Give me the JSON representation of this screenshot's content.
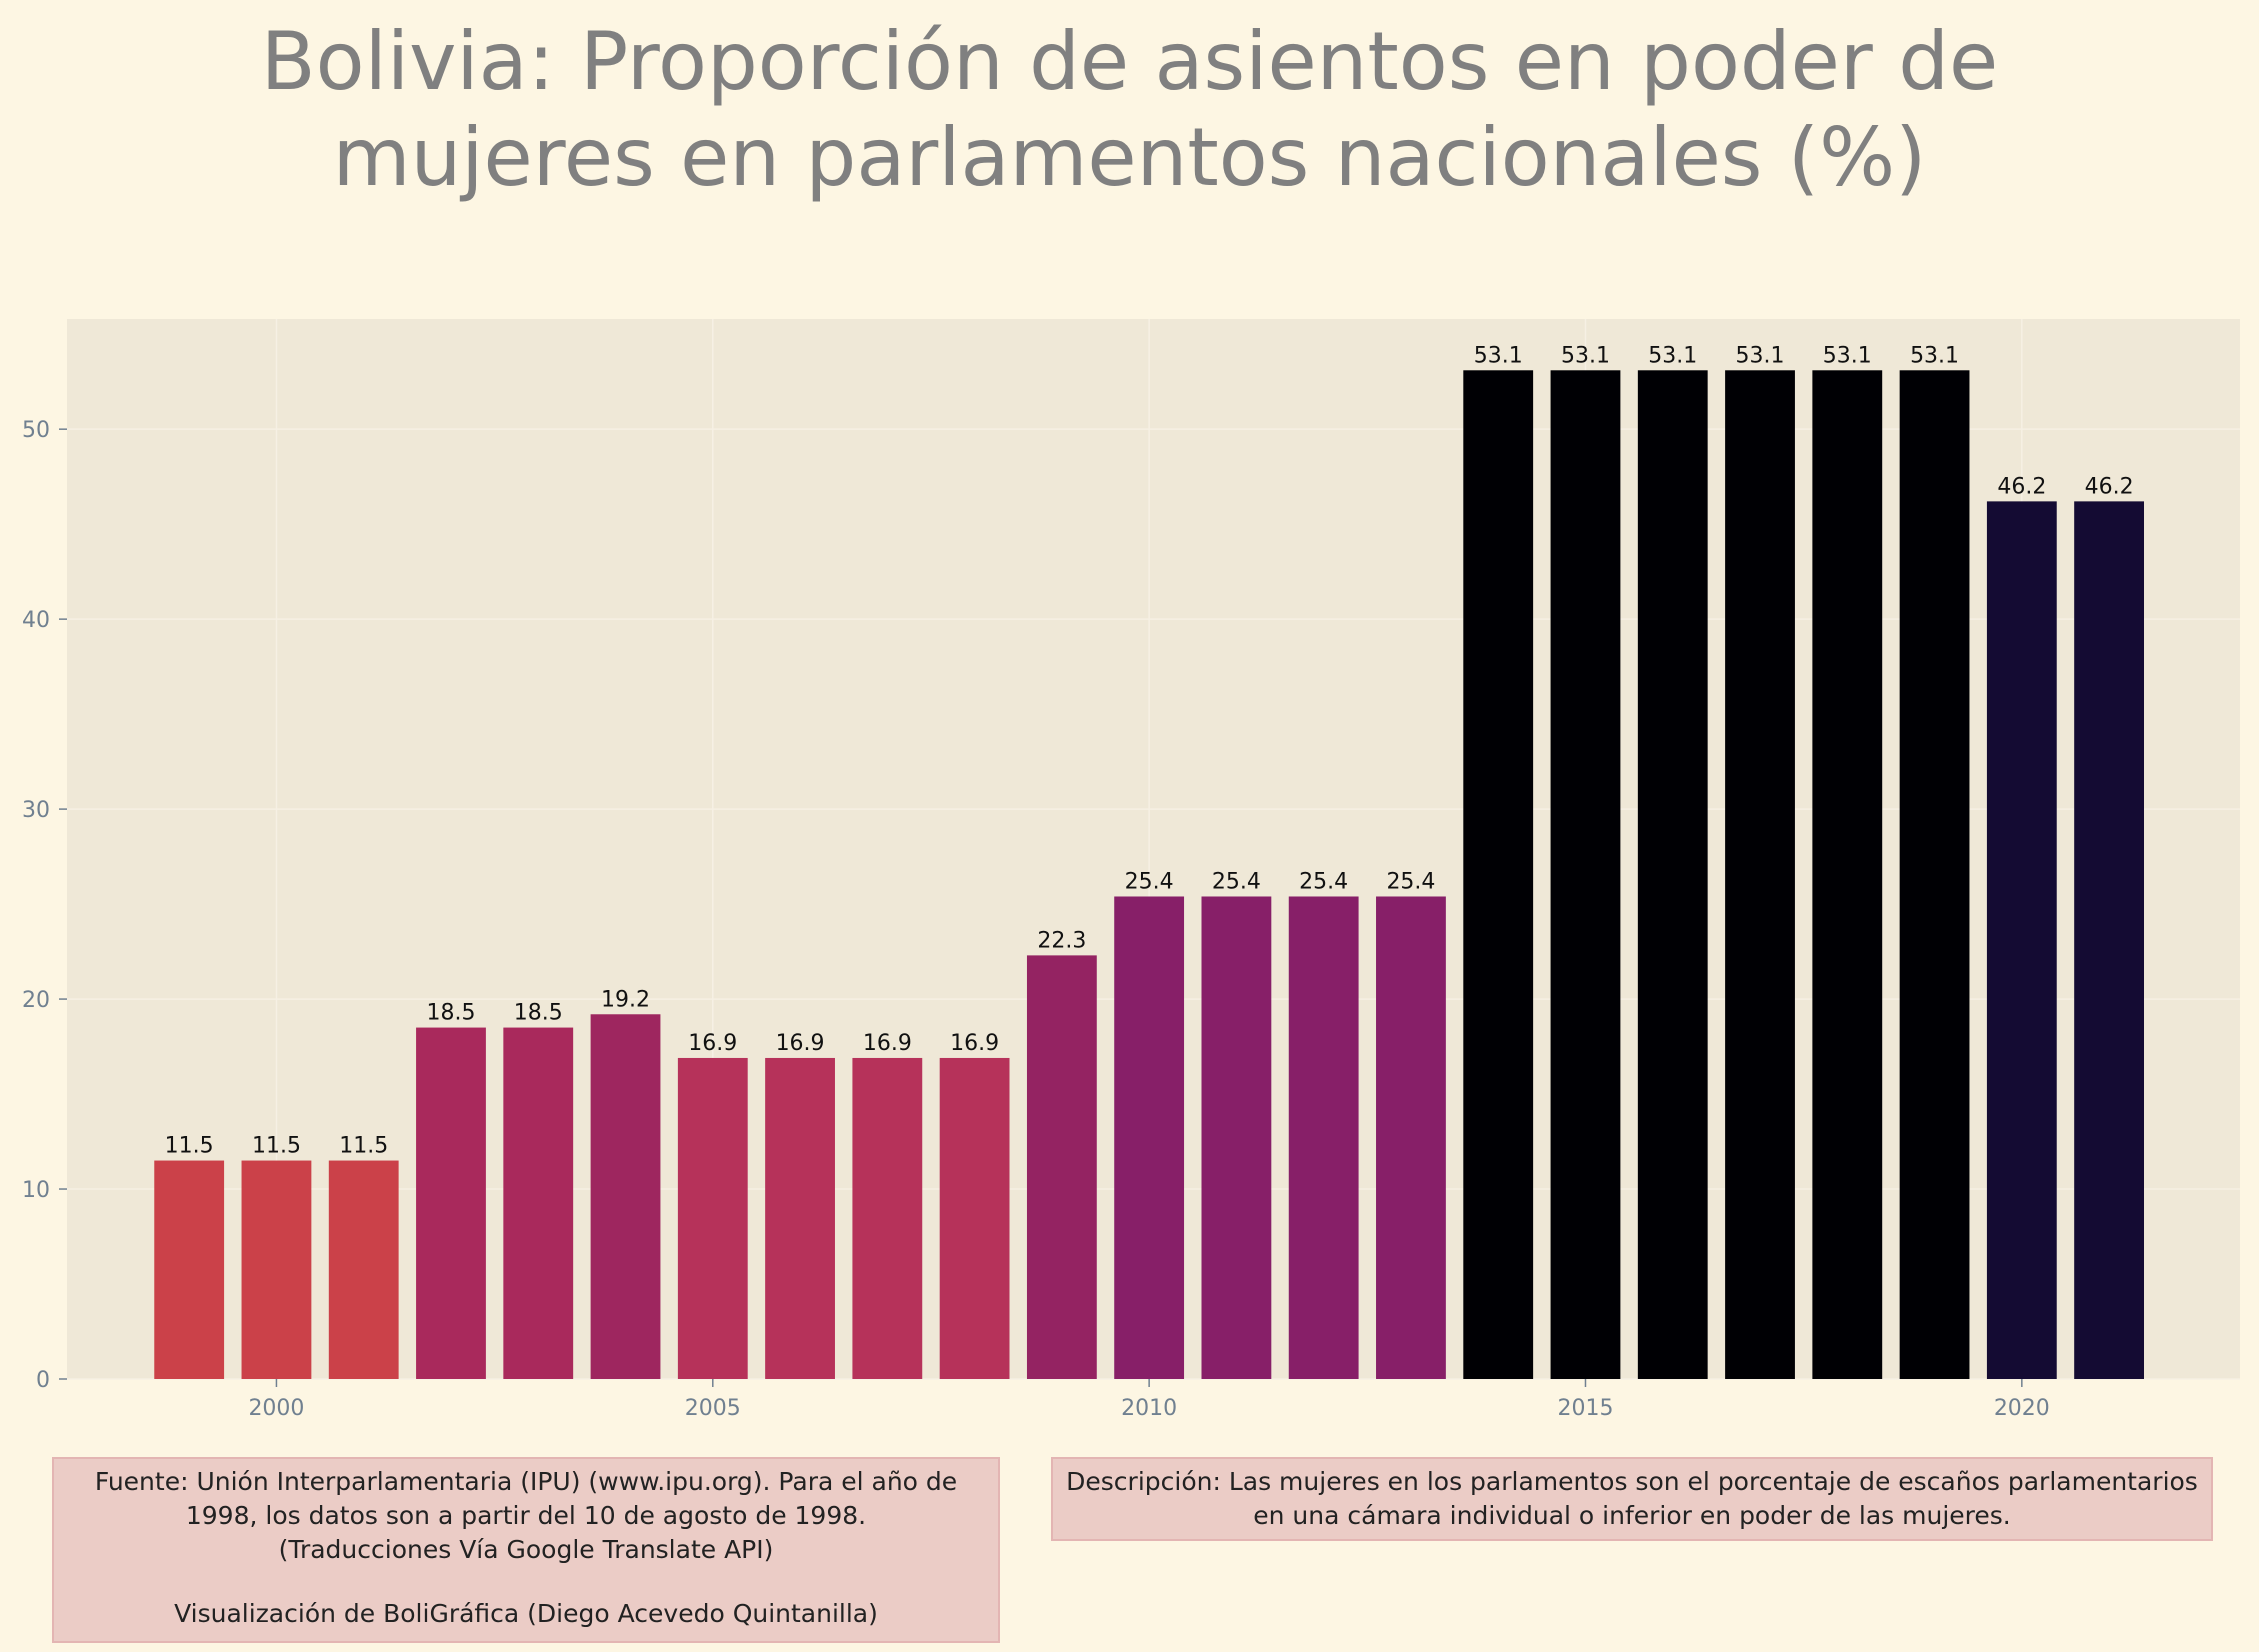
{
  "chart_data": {
    "type": "bar",
    "title": "Bolivia:  Proporción de asientos en poder de mujeres en parlamentos nacionales (%)",
    "title_lines": [
      "Bolivia:  Proporción de asientos en poder de",
      "mujeres en parlamentos nacionales (%)"
    ],
    "categories": [
      1999,
      2000,
      2001,
      2002,
      2003,
      2004,
      2005,
      2006,
      2007,
      2008,
      2009,
      2010,
      2011,
      2012,
      2013,
      2014,
      2015,
      2016,
      2017,
      2018,
      2019,
      2020,
      2021
    ],
    "values": [
      11.5,
      11.5,
      11.5,
      18.5,
      18.5,
      19.2,
      16.9,
      16.9,
      16.9,
      16.9,
      22.3,
      25.4,
      25.4,
      25.4,
      25.4,
      53.1,
      53.1,
      53.1,
      53.1,
      53.1,
      53.1,
      46.2,
      46.2
    ],
    "data_labels": [
      "11.5",
      "11.5",
      "11.5",
      "18.5",
      "18.5",
      "19.2",
      "16.9",
      "16.9",
      "16.9",
      "16.9",
      "22.3",
      "25.4",
      "25.4",
      "25.4",
      "25.4",
      "53.1",
      "53.1",
      "53.1",
      "53.1",
      "53.1",
      "53.1",
      "46.2",
      "46.2"
    ],
    "bar_colors": [
      "#cb4149",
      "#cb4149",
      "#cb4149",
      "#a9295c",
      "#a9295c",
      "#9e265f",
      "#b6325a",
      "#b6325a",
      "#b6325a",
      "#b6325a",
      "#942362",
      "#871f68",
      "#871f68",
      "#871f68",
      "#871f68",
      "#000004",
      "#000004",
      "#000004",
      "#000004",
      "#000004",
      "#000004",
      "#140b33",
      "#140b33"
    ],
    "xlim": [
      1997.6,
      2022.5
    ],
    "ylim": [
      0,
      55.8
    ],
    "x_ticks": [
      2000,
      2005,
      2010,
      2015,
      2020
    ],
    "y_ticks": [
      0,
      10,
      20,
      30,
      40,
      50
    ],
    "xlabel": "",
    "ylabel": "",
    "grid": true,
    "legend": "none"
  },
  "colors": {
    "background": "#fdf6e3",
    "plot_background": "#efe8d7",
    "tick_text": "#708090",
    "title_text": "#808080"
  },
  "notes": {
    "source_lines": [
      "Fuente: Unión Interparlamentaria (IPU) (www.ipu.org). Para el año de",
      "1998, los datos son a partir del 10 de agosto de 1998.",
      "(Traducciones Vía Google Translate API)"
    ],
    "credit": "Visualización de BoliGráfica (Diego Acevedo Quintanilla)",
    "description_lines": [
      "Descripción: Las mujeres en los parlamentos son el porcentaje de escaños parlamentarios",
      "en una cámara individual o inferior en poder de las mujeres."
    ]
  }
}
